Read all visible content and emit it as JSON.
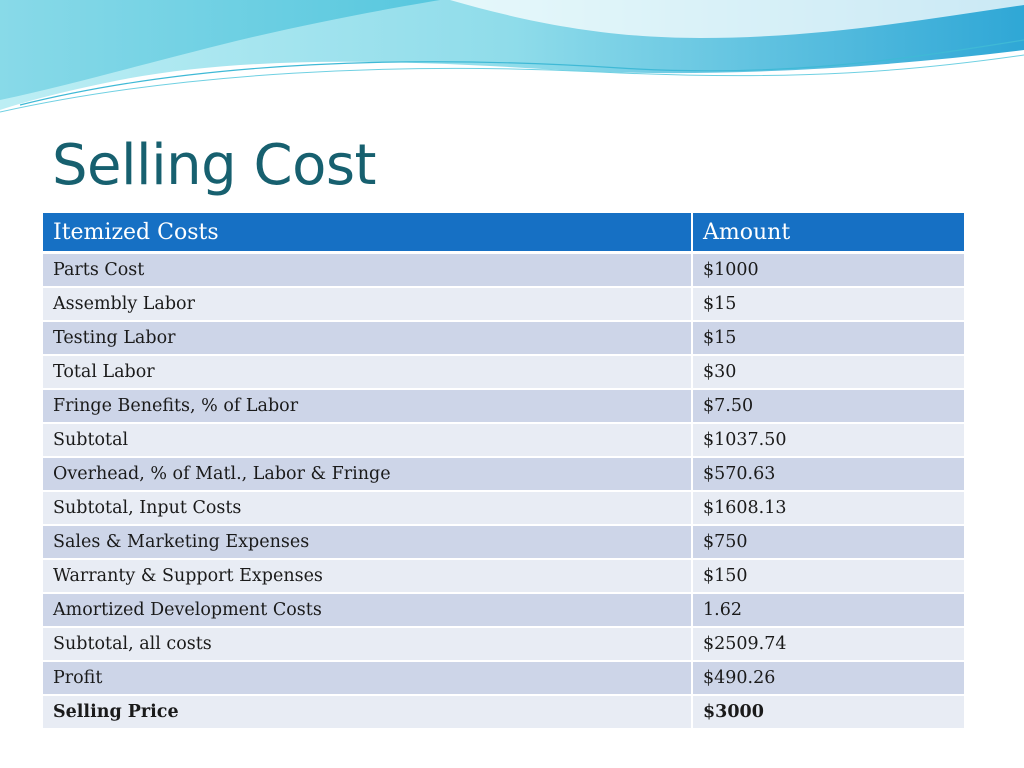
{
  "slide": {
    "title": "Selling Cost"
  },
  "colors": {
    "title": "#17606f",
    "header_bg": "#1670c4",
    "row_dark": "#cdd5e8",
    "row_light": "#e8ecf4",
    "wave_light": "#b8ecf2",
    "wave_mid": "#60cde0",
    "wave_dark": "#3fa9d8"
  },
  "table": {
    "headers": [
      "Itemized Costs",
      "Amount"
    ],
    "rows": [
      {
        "item": "Parts Cost",
        "amount": "$1000"
      },
      {
        "item": "Assembly Labor",
        "amount": "$15"
      },
      {
        "item": "Testing Labor",
        "amount": "$15"
      },
      {
        "item": "Total Labor",
        "amount": "$30"
      },
      {
        "item": "Fringe Benefits, % of Labor",
        "amount": "$7.50"
      },
      {
        "item": "Subtotal",
        "amount": "$1037.50"
      },
      {
        "item": "Overhead, % of Matl., Labor & Fringe",
        "amount": "$570.63"
      },
      {
        "item": "Subtotal, Input Costs",
        "amount": "$1608.13"
      },
      {
        "item": "Sales & Marketing Expenses",
        "amount": "$750"
      },
      {
        "item": "Warranty & Support Expenses",
        "amount": "$150"
      },
      {
        "item": "Amortized Development Costs",
        "amount": "1.62"
      },
      {
        "item": "Subtotal, all costs",
        "amount": "$2509.74"
      },
      {
        "item": "Profit",
        "amount": "$490.26"
      },
      {
        "item": "Selling Price",
        "amount": "$3000",
        "bold": true
      }
    ]
  }
}
